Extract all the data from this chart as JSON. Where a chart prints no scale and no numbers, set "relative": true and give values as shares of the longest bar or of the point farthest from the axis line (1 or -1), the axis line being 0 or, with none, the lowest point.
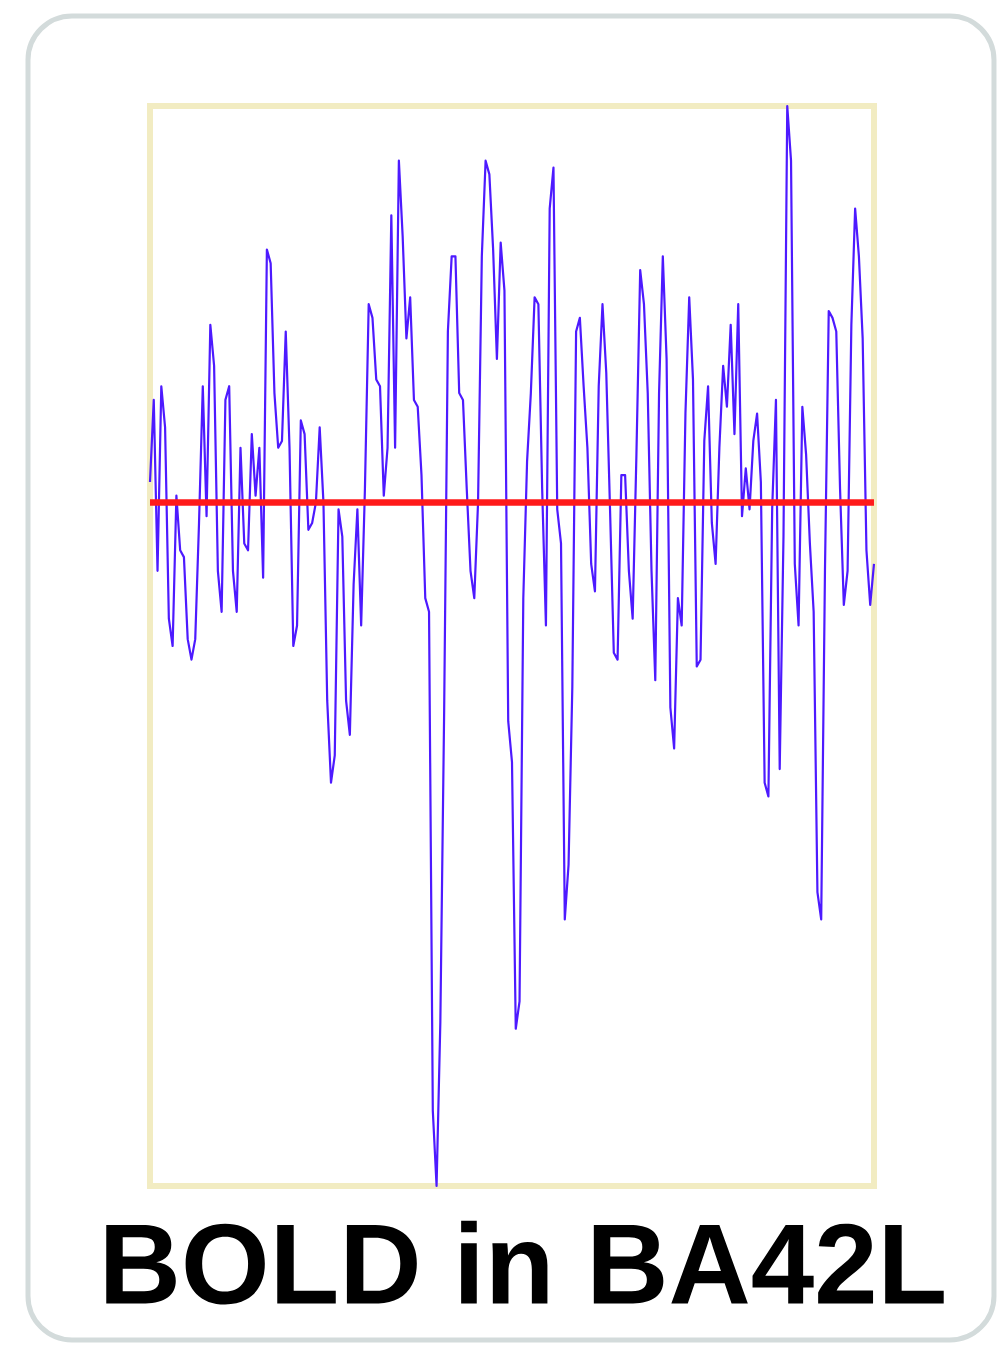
{
  "chart_data": {
    "type": "line",
    "title": "BOLD in BA42L",
    "relative": true,
    "color": "#4d1aff",
    "categories": [
      null,
      null,
      null,
      null,
      null,
      null,
      null,
      null,
      null,
      null,
      null,
      null,
      null,
      null,
      null,
      null,
      null,
      null,
      null,
      null,
      null,
      null,
      null,
      null,
      null,
      null,
      null,
      null,
      null,
      null,
      null,
      null,
      null,
      null,
      null,
      null,
      null,
      null,
      null,
      null,
      null,
      null,
      null,
      null,
      null,
      null,
      null,
      null,
      null,
      null,
      null,
      null,
      null,
      null,
      null,
      null,
      null,
      null,
      null,
      null,
      null,
      null,
      null,
      null,
      null,
      null,
      null,
      null,
      null,
      null,
      null,
      null,
      null,
      null,
      null,
      null,
      null,
      null,
      null,
      null,
      null,
      null,
      null,
      null,
      null,
      null,
      null,
      null,
      null,
      null,
      null,
      null,
      null,
      null,
      null,
      null,
      null,
      null,
      null,
      null,
      null,
      null,
      null,
      null,
      null,
      null,
      null,
      null,
      null,
      null,
      null,
      null,
      null,
      null,
      null,
      null,
      null,
      null,
      null,
      null,
      null,
      null,
      null,
      null,
      null,
      null,
      null,
      null,
      null,
      null,
      null,
      null,
      null,
      null,
      null,
      null,
      null,
      null,
      null,
      null,
      null,
      null,
      null,
      null,
      null,
      null,
      null,
      null,
      null,
      null,
      null,
      null,
      null,
      null,
      null,
      null,
      null,
      null,
      null,
      null,
      null,
      null,
      null,
      null,
      null,
      null,
      null,
      null,
      null,
      null,
      null,
      null,
      null,
      null,
      null,
      null,
      null,
      null,
      null,
      null,
      null,
      null,
      null,
      null,
      null,
      null,
      null,
      null,
      null,
      null,
      null,
      null,
      null
    ],
    "values": [
      0.03,
      0.15,
      -0.1,
      0.17,
      0.11,
      -0.17,
      -0.21,
      0.01,
      -0.07,
      -0.08,
      -0.2,
      -0.23,
      -0.2,
      -0.03,
      0.17,
      -0.02,
      0.26,
      0.2,
      -0.1,
      -0.16,
      0.15,
      0.17,
      -0.1,
      -0.16,
      0.08,
      -0.06,
      -0.07,
      0.1,
      0.01,
      0.08,
      -0.11,
      0.37,
      0.35,
      0.16,
      0.08,
      0.09,
      0.25,
      0.08,
      -0.21,
      -0.18,
      0.12,
      0.1,
      -0.04,
      -0.03,
      0,
      0.11,
      0,
      -0.29,
      -0.41,
      -0.37,
      -0.01,
      -0.05,
      -0.29,
      -0.34,
      -0.12,
      -0.01,
      -0.18,
      0.02,
      0.29,
      0.27,
      0.18,
      0.17,
      0.01,
      0.08,
      0.42,
      0.08,
      0.5,
      0.39,
      0.24,
      0.3,
      0.15,
      0.14,
      0.04,
      -0.14,
      -0.16,
      -0.89,
      -1,
      -0.76,
      -0.31,
      0.25,
      0.36,
      0.36,
      0.16,
      0.15,
      0.02,
      -0.1,
      -0.14,
      0,
      0.36,
      0.5,
      0.48,
      0.37,
      0.21,
      0.38,
      0.31,
      -0.32,
      -0.38,
      -0.77,
      -0.73,
      -0.14,
      0.06,
      0.16,
      0.3,
      0.29,
      0.02,
      -0.18,
      0.43,
      0.49,
      -0.01,
      -0.06,
      -0.61,
      -0.53,
      -0.27,
      0.25,
      0.27,
      0.17,
      0.08,
      -0.09,
      -0.13,
      0.17,
      0.29,
      0.19,
      -0.01,
      -0.22,
      -0.23,
      0.04,
      0.04,
      -0.1,
      -0.17,
      0.07,
      0.34,
      0.29,
      0.16,
      -0.1,
      -0.26,
      0.16,
      0.36,
      0.21,
      -0.3,
      -0.36,
      -0.14,
      -0.18,
      0.13,
      0.3,
      0.18,
      -0.24,
      -0.23,
      0.09,
      0.17,
      -0.03,
      -0.09,
      0.08,
      0.2,
      0.14,
      0.26,
      0.1,
      0.29,
      -0.02,
      0.05,
      -0.01,
      0.09,
      0.13,
      0.03,
      -0.41,
      -0.43,
      -0.01,
      0.15,
      -0.39,
      -0.05,
      0.58,
      0.5,
      -0.09,
      -0.18,
      0.14,
      0.07,
      -0.06,
      -0.16,
      -0.57,
      -0.61,
      -0.1,
      0.28,
      0.27,
      0.25,
      0.02,
      -0.15,
      -0.1,
      0.26,
      0.43,
      0.36,
      0.24,
      -0.07,
      -0.15,
      -0.09
    ],
    "ref_lines": [
      {
        "axis": "y",
        "value": 0,
        "color": "#ff1a1a"
      }
    ]
  }
}
